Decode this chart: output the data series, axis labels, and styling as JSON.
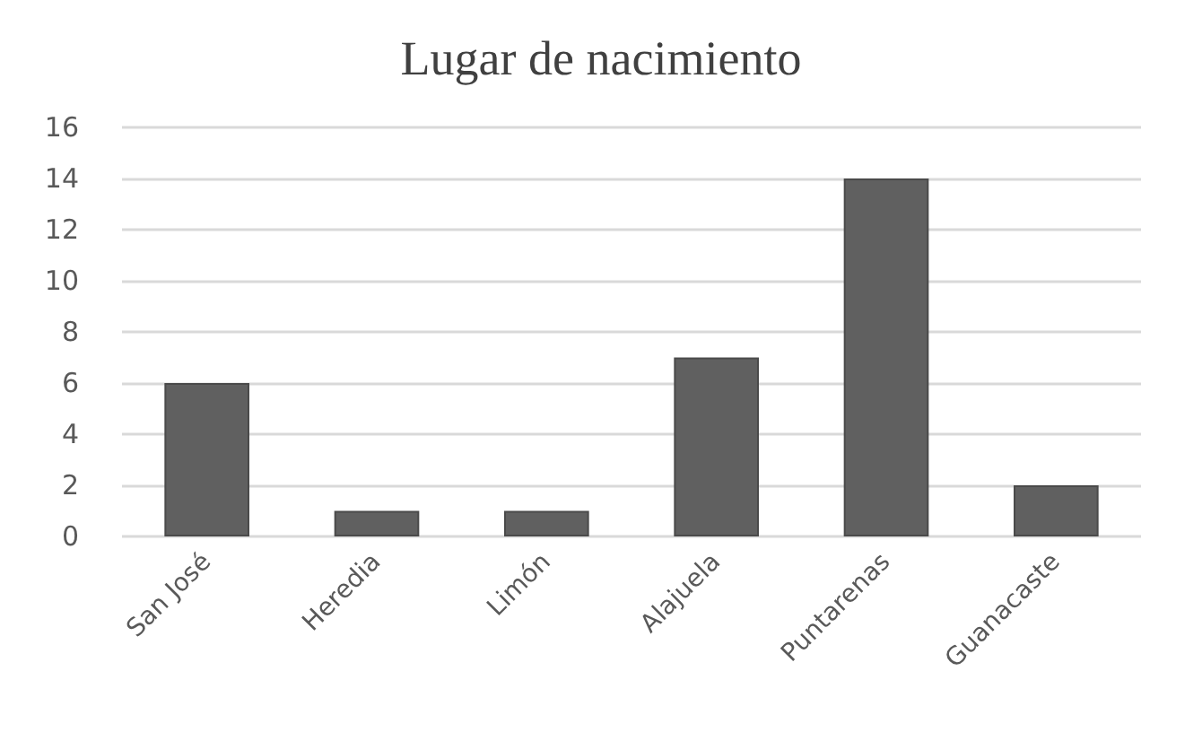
{
  "chart_data": {
    "type": "bar",
    "title": "Lugar de nacimiento",
    "categories": [
      "San José",
      "Heredia",
      "Limón",
      "Alajuela",
      "Puntarenas",
      "Guanacaste"
    ],
    "values": [
      6,
      1,
      1,
      7,
      14,
      2
    ],
    "color": "#606060",
    "ylim": [
      0,
      16
    ],
    "yticks": [
      0,
      2,
      4,
      6,
      8,
      10,
      12,
      14,
      16
    ],
    "grid": "y"
  }
}
